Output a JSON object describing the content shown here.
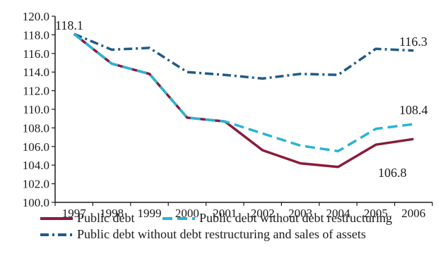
{
  "chart_data": {
    "type": "line",
    "title": "",
    "xlabel": "",
    "ylabel": "",
    "ylim": [
      100.0,
      120.0
    ],
    "yticks": [
      "100.0",
      "102.0",
      "104.0",
      "106.0",
      "108.0",
      "110.0",
      "112.0",
      "114.0",
      "116.0",
      "118.0",
      "120.0"
    ],
    "x": [
      "1997",
      "1998",
      "1999",
      "2000",
      "2001",
      "2002",
      "2003",
      "2004",
      "2005",
      "2006"
    ],
    "grid": false,
    "legend_position": "bottom",
    "series": [
      {
        "name": "Public debt",
        "color": "#8b1a3a",
        "style": "solid",
        "values": [
          118.1,
          114.9,
          113.8,
          109.1,
          108.7,
          105.6,
          104.2,
          103.8,
          106.2,
          106.8
        ]
      },
      {
        "name": "Public debt without debt restructuring",
        "color": "#27b4d6",
        "style": "dashed",
        "values": [
          118.1,
          114.9,
          113.8,
          109.1,
          108.7,
          107.4,
          106.1,
          105.5,
          107.9,
          108.4
        ]
      },
      {
        "name": "Public debt without debt restructuring and sales of assets",
        "color": "#1f5b86",
        "style": "dashdot",
        "values": [
          118.1,
          116.4,
          116.6,
          114.0,
          113.7,
          113.3,
          113.8,
          113.7,
          116.5,
          116.3
        ]
      }
    ],
    "annotations": [
      {
        "text": "118.1"
      },
      {
        "text": "116.3"
      },
      {
        "text": "108.4"
      },
      {
        "text": "106.8"
      }
    ]
  }
}
